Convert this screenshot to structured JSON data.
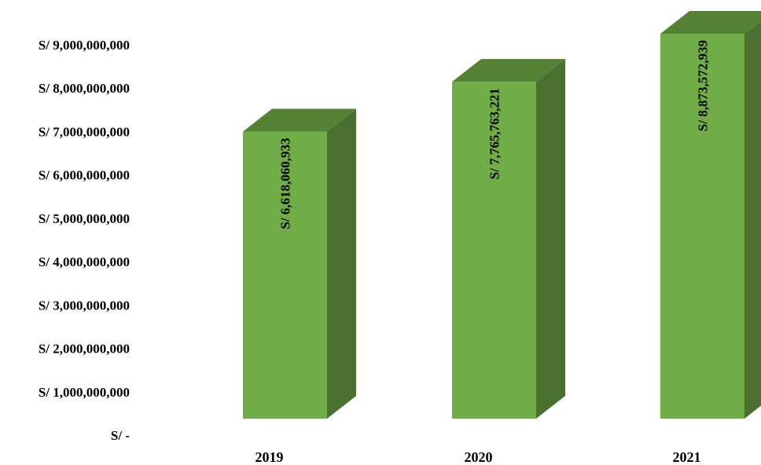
{
  "chart_data": {
    "type": "bar",
    "title": "",
    "xlabel": "",
    "ylabel": "",
    "categories": [
      "2019",
      "2020",
      "2021"
    ],
    "values": [
      6618060933,
      7765763221,
      8873572939
    ],
    "data_labels": [
      "S/ 6,618,060,933",
      "S/ 7,765,763,221",
      "S/ 8,873,572,939"
    ],
    "ylim": [
      0,
      9000000000
    ],
    "y_ticks": [
      0,
      1000000000,
      2000000000,
      3000000000,
      4000000000,
      5000000000,
      6000000000,
      7000000000,
      8000000000,
      9000000000
    ],
    "y_tick_labels": [
      "S/ -",
      "S/ 1,000,000,000",
      "S/ 2,000,000,000",
      "S/ 3,000,000,000",
      "S/ 4,000,000,000",
      "S/ 5,000,000,000",
      "S/ 6,000,000,000",
      "S/ 7,000,000,000",
      "S/ 8,000,000,000",
      "S/ 9,000,000,000"
    ],
    "grid": false,
    "legend": "none",
    "style": "3d-column",
    "colors": {
      "front": "#70ad47",
      "side": "#4a7030",
      "top": "#548235",
      "text": "#000000"
    }
  }
}
